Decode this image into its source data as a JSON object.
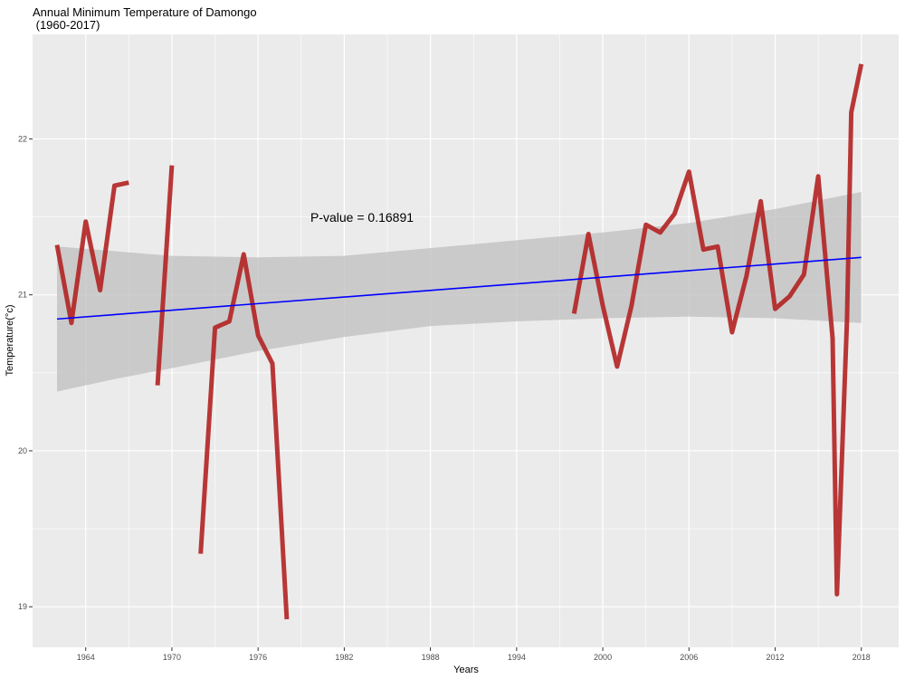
{
  "chart_data": {
    "type": "line",
    "title": "Annual Minimum Temperature  of Damongo",
    "subtitle": " (1960-2017)",
    "xlabel": "Years",
    "ylabel": "Temperature(°c)",
    "xlim": [
      1960.3,
      2020.6
    ],
    "ylim": [
      18.74,
      22.67
    ],
    "x_ticks": [
      1964,
      1970,
      1976,
      1982,
      1988,
      1994,
      2000,
      2006,
      2012,
      2018
    ],
    "y_ticks": [
      19,
      20,
      21,
      22
    ],
    "grid": true,
    "annotation": "P-value = 0.16891",
    "colors": {
      "panel": "#ebebeb",
      "grid": "#ffffff",
      "series": "#b22222",
      "trend": "#0000ff",
      "ribbon": "#bfbfbf"
    },
    "series": [
      {
        "segments": [
          [
            [
              1962,
              21.32
            ],
            [
              1963,
              20.82
            ],
            [
              1964,
              21.47
            ],
            [
              1965,
              21.03
            ],
            [
              1966,
              21.7
            ],
            [
              1967,
              21.72
            ]
          ],
          [
            [
              1969,
              20.42
            ],
            [
              1970,
              21.83
            ]
          ],
          [
            [
              1972,
              19.34
            ],
            [
              1973,
              20.79
            ],
            [
              1974,
              20.83
            ],
            [
              1975,
              21.26
            ],
            [
              1976,
              20.74
            ],
            [
              1977,
              20.56
            ],
            [
              1978,
              18.92
            ]
          ],
          [
            [
              1998,
              20.88
            ],
            [
              1999,
              21.39
            ],
            [
              2000,
              20.93
            ],
            [
              2001,
              20.54
            ],
            [
              2002,
              20.93
            ],
            [
              2003,
              21.45
            ],
            [
              2004,
              21.4
            ],
            [
              2005,
              21.52
            ],
            [
              2006,
              21.79
            ],
            [
              2007,
              21.29
            ],
            [
              2008,
              21.31
            ],
            [
              2009,
              20.76
            ],
            [
              2010,
              21.12
            ],
            [
              2011,
              21.6
            ],
            [
              2012,
              20.91
            ],
            [
              2013,
              20.99
            ],
            [
              2014,
              21.13
            ],
            [
              2015,
              21.76
            ],
            [
              2016,
              20.72
            ],
            [
              2016.3,
              19.08
            ],
            [
              2017,
              20.84
            ],
            [
              2017.3,
              22.17
            ],
            [
              2018,
              22.48
            ]
          ]
        ]
      }
    ],
    "trend_line": {
      "x": [
        1962,
        2018
      ],
      "y": [
        20.845,
        21.24
      ]
    },
    "confidence_band": {
      "x": [
        1962,
        1966,
        1970,
        1976,
        1982,
        1988,
        1994,
        2000,
        2006,
        2012,
        2018
      ],
      "lower": [
        20.38,
        20.46,
        20.53,
        20.64,
        20.73,
        20.8,
        20.83,
        20.85,
        20.86,
        20.85,
        20.82
      ],
      "upper": [
        21.31,
        21.28,
        21.25,
        21.24,
        21.25,
        21.3,
        21.35,
        21.4,
        21.46,
        21.55,
        21.66
      ]
    }
  }
}
